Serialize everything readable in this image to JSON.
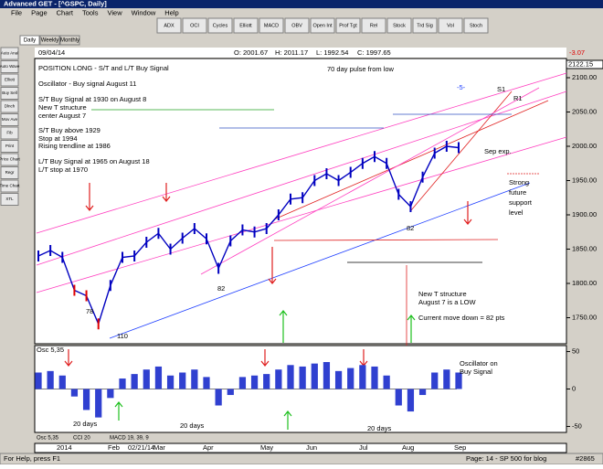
{
  "window": {
    "title": "Advanced GET - [^GSPC, Daily]",
    "menu": [
      "File",
      "Page",
      "Chart",
      "Tools",
      "View",
      "Window",
      "Help"
    ],
    "toolbar": [
      "ADX",
      "OCI",
      "Cycles",
      "Elliott",
      "MACD",
      "OBV",
      "Open Int",
      "Prof Tgt",
      "Rel",
      "Stock",
      "Trd Sig",
      "Vol",
      "Stoch"
    ],
    "side_tools": [
      "Auto Anal",
      "Auto Wave",
      "Elliott",
      "Buy Sell",
      "Dlnch",
      "Mov Ave",
      "Fib",
      "Print",
      "Price Chart",
      "Regr",
      "Time Chart",
      "XTL"
    ],
    "tabs": [
      "Daily",
      "Weekly",
      "Monthly"
    ]
  },
  "chart": {
    "date": "09/04/14",
    "ohlc": [
      "O: 2001.67",
      "H: 2011.17",
      "L: 1992.54",
      "C: 1997.65"
    ],
    "change": "-3.07",
    "last_price": "2122.15",
    "price": {
      "ylim": [
        1712,
        2128
      ],
      "yticks": [
        {
          "value": 1750,
          "label": "1750.00"
        },
        {
          "value": 1800,
          "label": "1800.00"
        },
        {
          "value": 1850,
          "label": "1850.00"
        },
        {
          "value": 1900,
          "label": "1900.00"
        },
        {
          "value": 1950,
          "label": "1950.00"
        },
        {
          "value": 2000,
          "label": "2000.00"
        },
        {
          "value": 2050,
          "label": "2050.00"
        },
        {
          "value": 2100,
          "label": "2100.00"
        }
      ],
      "closes": [
        1840,
        1848,
        1838,
        1790,
        1782,
        1741,
        1797,
        1838,
        1840,
        1860,
        1873,
        1850,
        1866,
        1880,
        1865,
        1822,
        1862,
        1878,
        1875,
        1880,
        1900,
        1923,
        1925,
        1950,
        1960,
        1950,
        1962,
        1975,
        1985,
        1975,
        1930,
        1912,
        1955,
        1990,
        2000,
        1998
      ]
    },
    "oscillator": {
      "label": "Osc 5,35",
      "ylim": [
        -58,
        58
      ],
      "yticks": [
        50,
        0,
        -50
      ],
      "values": [
        22,
        24,
        18,
        -10,
        -28,
        -38,
        -12,
        14,
        20,
        26,
        30,
        18,
        22,
        26,
        16,
        -22,
        -8,
        16,
        18,
        20,
        26,
        32,
        30,
        34,
        36,
        24,
        28,
        32,
        30,
        18,
        -22,
        -30,
        -8,
        22,
        26,
        22
      ]
    },
    "xlabels": [
      "2014",
      "Feb",
      "02/21/14",
      "Mar",
      "Apr",
      "May",
      "Jun",
      "Jul",
      "Aug",
      "Sep"
    ],
    "annotations": [
      "POSITION LONG - S/T and L/T Buy Signal",
      "Oscillator - Buy signal August 11",
      "S/T Buy Signal at 1930 on August 8",
      "New T structure",
      "center August 7",
      "S/T Buy above 1929",
      "Stop at 1994",
      "Rising trendline at 1986",
      "L/T Buy Signal at 1965 on August 18",
      "L/T stop at 1970",
      "70 day pulse from low",
      "-5-",
      "S1",
      "R1",
      "Sep exp.",
      "Strong",
      "future",
      "support",
      "level",
      "New T structure",
      "August 7 is a LOW",
      "Current move down = 82 pts",
      "78",
      "110",
      "82",
      "82",
      "Oscillator on",
      "Buy Signal",
      "20 days",
      "20 days",
      "20 days"
    ],
    "bottom_tabs": [
      "Osc 5,35",
      "CCI 20",
      "MACD 19, 39, 9"
    ]
  },
  "status": {
    "help": "For Help, press F1",
    "page": "Page: 14 - SP 500 for blog",
    "id": "#2865"
  }
}
